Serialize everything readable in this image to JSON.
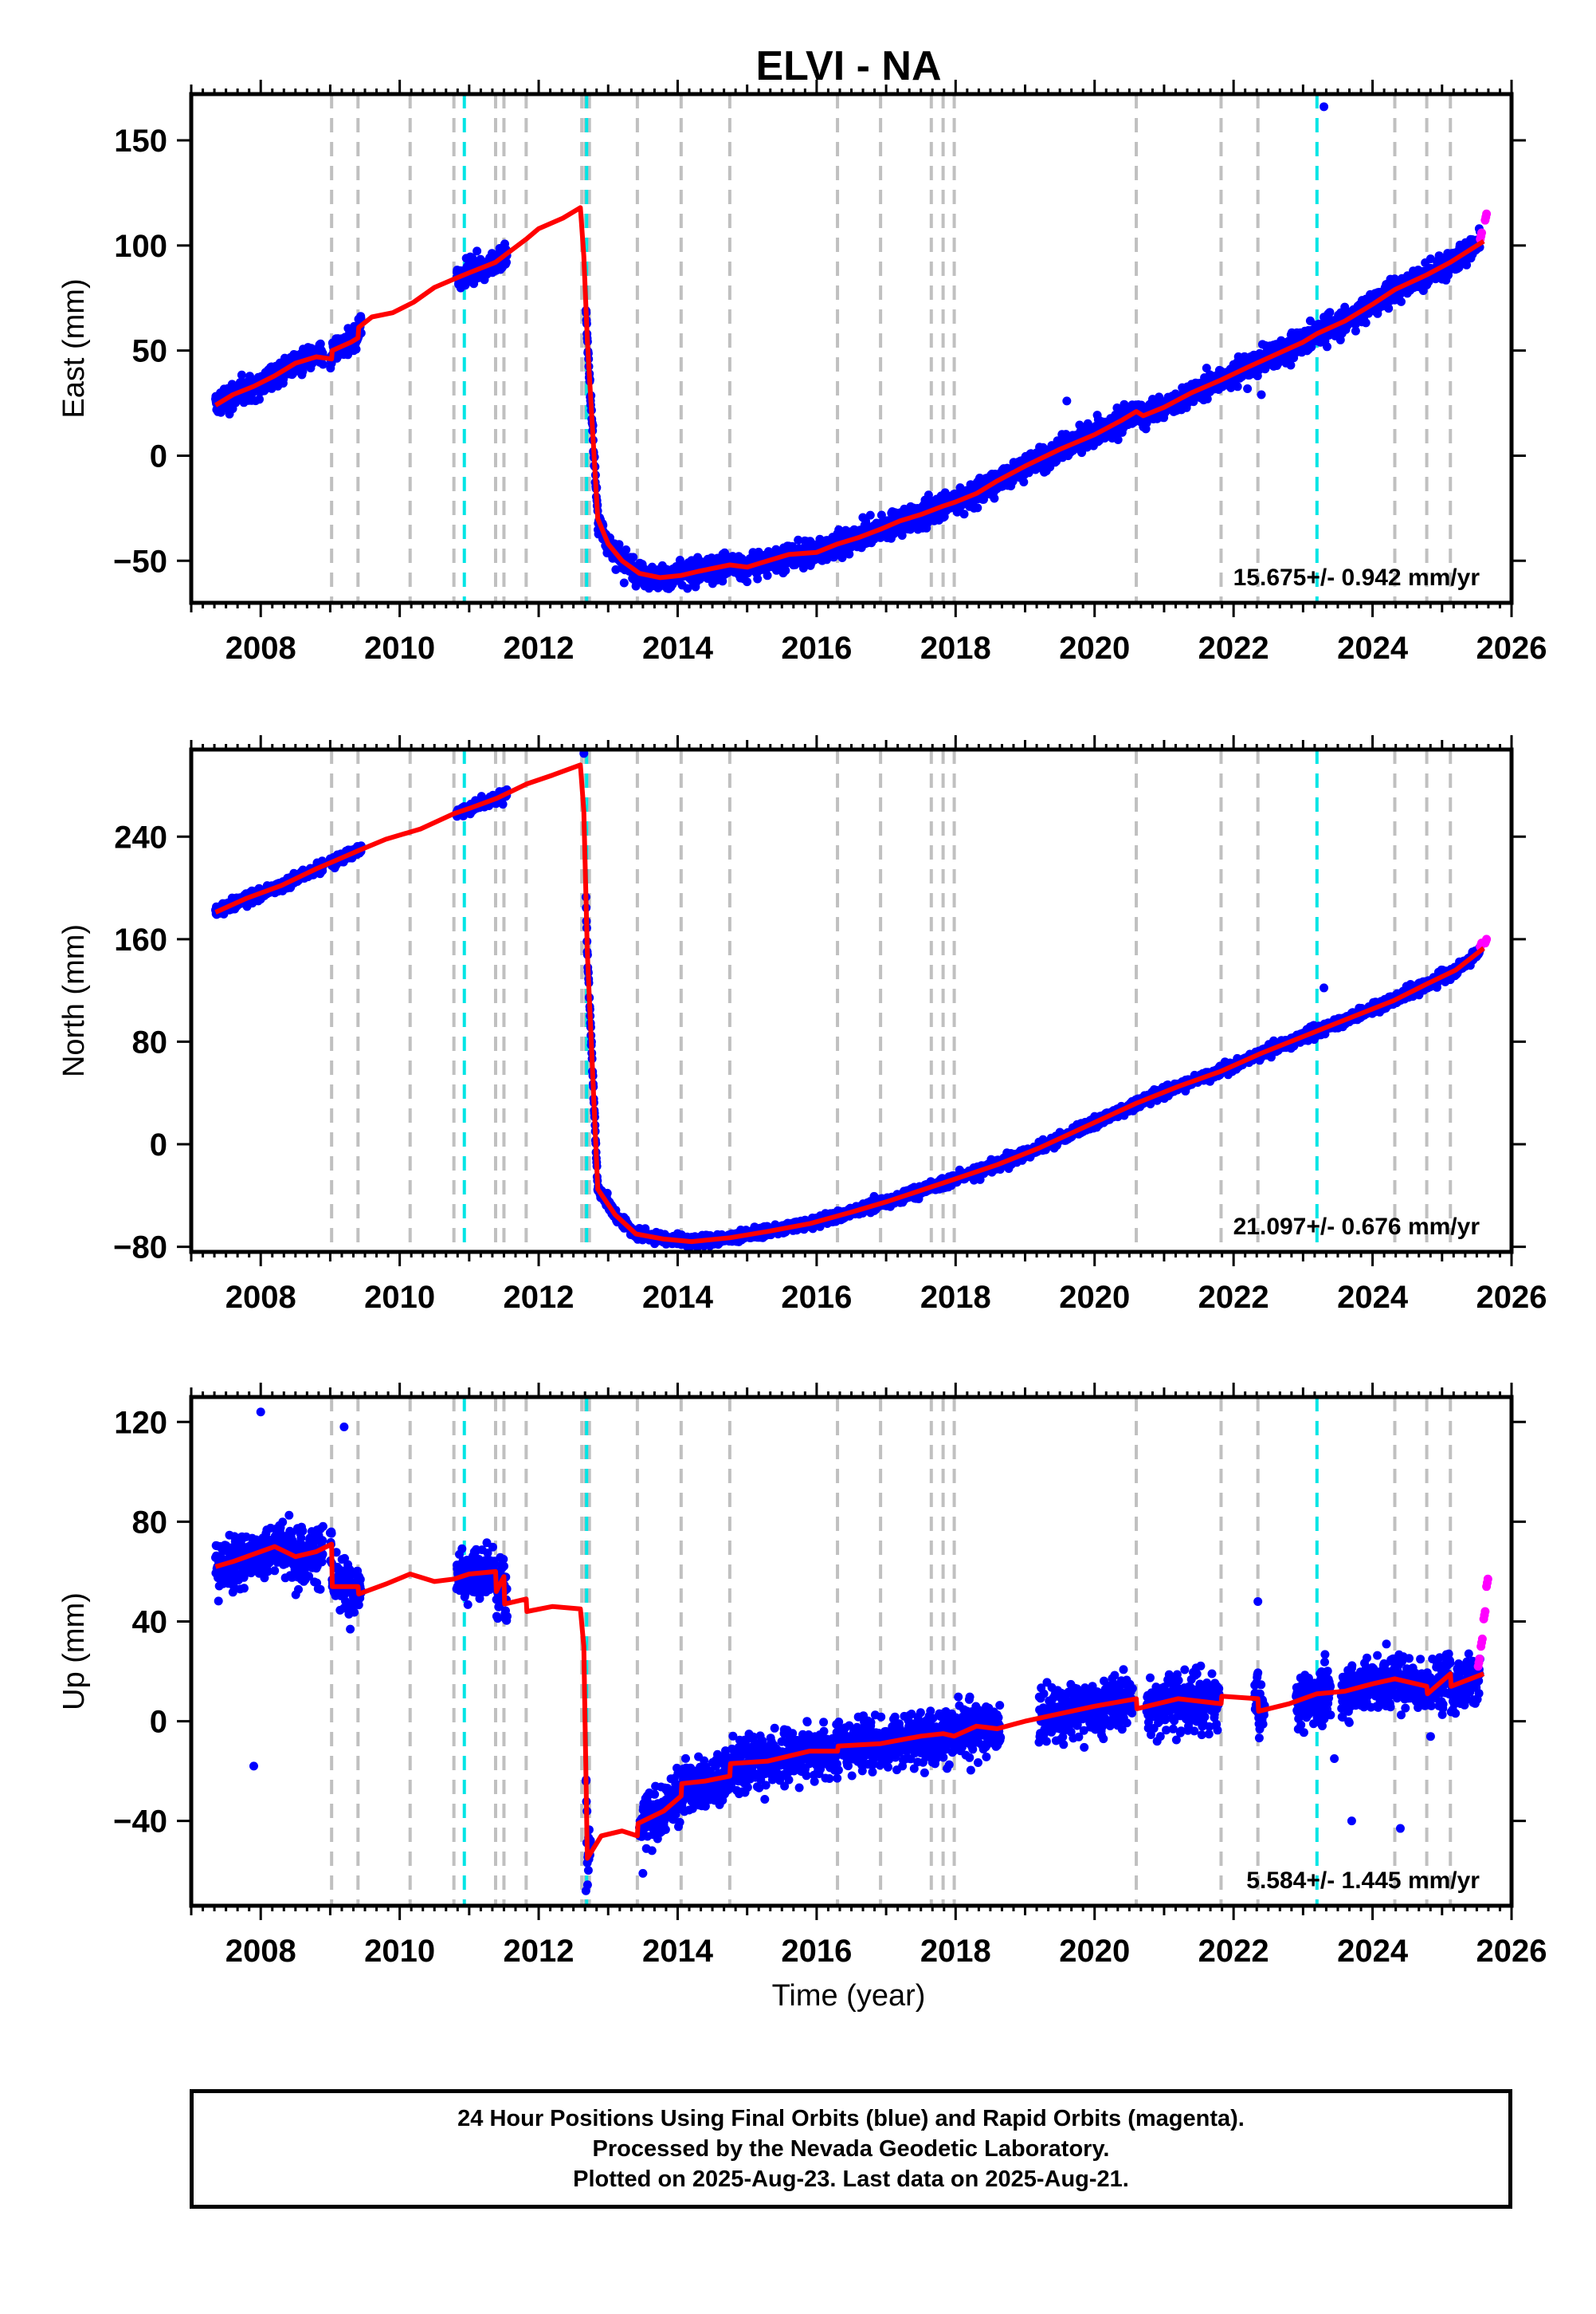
{
  "title": "ELVI - NA",
  "x_axis_title": "Time (year)",
  "caption": [
    "24 Hour Positions Using Final Orbits (blue) and Rapid Orbits (magenta).",
    "Processed by the Nevada Geodetic Laboratory.",
    "Plotted on 2025-Aug-23. Last data on 2025-Aug-21."
  ],
  "colors": {
    "final_orbits": "#0000ff",
    "rapid_orbits": "#ff00ff",
    "model": "#ff0000",
    "equipment_change": "#c0c0c0",
    "earthquake": "#00e5e5"
  },
  "chart_data": [
    {
      "type": "scatter",
      "panel": "east",
      "ylabel": "East (mm)",
      "xlim": [
        2007.0,
        2026.0
      ],
      "ylim": [
        -70,
        172
      ],
      "xticks": [
        2008,
        2010,
        2012,
        2014,
        2016,
        2018,
        2020,
        2022,
        2024,
        2026
      ],
      "yticks": [
        -50,
        0,
        50,
        100,
        150
      ],
      "rate_label": "15.675+/- 0.942 mm/yr",
      "gray_lines": [
        2009.02,
        2009.4,
        2010.15,
        2010.78,
        2011.38,
        2011.5,
        2011.82,
        2012.62,
        2012.67,
        2012.73,
        2013.42,
        2014.05,
        2014.75,
        2016.3,
        2016.92,
        2017.65,
        2017.82,
        2017.98,
        2020.6,
        2021.82,
        2022.35,
        2024.32,
        2024.78,
        2025.12
      ],
      "cyan_lines": [
        2010.93,
        2012.69,
        2023.2
      ],
      "model_series": {
        "name": "model",
        "x": [
          2007.35,
          2007.6,
          2007.9,
          2008.2,
          2008.5,
          2008.8,
          2009.02,
          2009.03,
          2009.3,
          2009.4,
          2009.41,
          2009.6,
          2009.9,
          2010.2,
          2010.5,
          2010.78,
          2011.0,
          2011.38,
          2011.5,
          2011.82,
          2012.0,
          2012.35,
          2012.6,
          2012.65,
          2012.7,
          2012.85,
          2013.0,
          2013.2,
          2013.45,
          2013.75,
          2014.05,
          2014.3,
          2014.75,
          2015.0,
          2015.3,
          2015.6,
          2016.0,
          2016.3,
          2016.6,
          2016.92,
          2017.2,
          2017.5,
          2017.82,
          2018.0,
          2018.3,
          2018.6,
          2019.0,
          2019.5,
          2020.0,
          2020.4,
          2020.6,
          2020.7,
          2021.0,
          2021.4,
          2021.82,
          2022.2,
          2022.6,
          2023.0,
          2023.2,
          2023.6,
          2024.0,
          2024.32,
          2024.78,
          2025.12,
          2025.6
        ],
        "values": [
          24,
          29,
          33,
          38,
          44,
          47,
          46,
          50,
          54,
          56,
          61,
          66,
          68,
          73,
          80,
          84,
          87,
          92,
          95,
          103,
          108,
          113,
          118,
          95,
          55,
          -30,
          -42,
          -50,
          -56,
          -58,
          -57,
          -55,
          -52,
          -53,
          -50,
          -47,
          -46,
          -42,
          -39,
          -35,
          -31,
          -28,
          -24,
          -22,
          -18,
          -12,
          -5,
          3,
          10,
          17,
          21,
          19,
          23,
          30,
          36,
          42,
          48,
          54,
          58,
          64,
          72,
          79,
          86,
          92,
          102
        ]
      },
      "observations_final": {
        "name": "Final Orbits",
        "segments": [
          [
            2007.35,
            2008.9
          ],
          [
            2009.0,
            2009.45
          ],
          [
            2010.82,
            2011.55
          ],
          [
            2012.68,
            2025.55
          ]
        ],
        "scatter_mm": 3.5,
        "outliers": [
          [
            2023.3,
            166
          ],
          [
            2022.4,
            29
          ],
          [
            2019.6,
            26
          ]
        ]
      },
      "observations_rapid": {
        "name": "Rapid Orbits",
        "x": [
          2025.55,
          2025.62
        ],
        "values": [
          103,
          112
        ]
      }
    },
    {
      "type": "scatter",
      "panel": "north",
      "ylabel": "North (mm)",
      "xlim": [
        2007.0,
        2026.0
      ],
      "ylim": [
        -84,
        308
      ],
      "xticks": [
        2008,
        2010,
        2012,
        2014,
        2016,
        2018,
        2020,
        2022,
        2024,
        2026
      ],
      "yticks": [
        -80,
        0,
        80,
        160,
        240
      ],
      "rate_label": "21.097+/- 0.676 mm/yr",
      "gray_lines": [
        2009.02,
        2009.4,
        2010.15,
        2010.78,
        2011.38,
        2011.5,
        2011.82,
        2012.62,
        2012.67,
        2012.73,
        2013.42,
        2014.05,
        2014.75,
        2016.3,
        2016.92,
        2017.65,
        2017.82,
        2017.98,
        2020.6,
        2021.82,
        2022.35,
        2024.32,
        2024.78,
        2025.12
      ],
      "cyan_lines": [
        2010.93,
        2012.69,
        2023.2
      ],
      "model_series": {
        "name": "model",
        "x": [
          2007.35,
          2007.8,
          2008.3,
          2008.8,
          2009.02,
          2009.4,
          2009.8,
          2010.3,
          2010.78,
          2011.0,
          2011.4,
          2011.82,
          2012.2,
          2012.6,
          2012.65,
          2012.7,
          2012.85,
          2013.1,
          2013.4,
          2013.8,
          2014.2,
          2014.75,
          2015.3,
          2015.9,
          2016.5,
          2017.0,
          2017.5,
          2018.0,
          2018.6,
          2019.2,
          2019.8,
          2020.6,
          2021.2,
          2021.82,
          2022.4,
          2023.0,
          2023.6,
          2024.3,
          2024.78,
          2025.2,
          2025.6
        ],
        "values": [
          181,
          192,
          202,
          215,
          220,
          229,
          238,
          246,
          258,
          262,
          270,
          281,
          288,
          296,
          260,
          150,
          -35,
          -55,
          -70,
          -74,
          -76,
          -73,
          -68,
          -62,
          -53,
          -45,
          -36,
          -27,
          -16,
          -3,
          12,
          32,
          45,
          57,
          71,
          84,
          97,
          112,
          125,
          136,
          153
        ]
      },
      "observations_final": {
        "name": "Final Orbits",
        "segments": [
          [
            2007.35,
            2008.9
          ],
          [
            2009.0,
            2009.45
          ],
          [
            2010.82,
            2011.55
          ],
          [
            2012.68,
            2025.55
          ]
        ],
        "scatter_mm": 2.5,
        "outliers": [
          [
            2023.3,
            122
          ],
          [
            2012.65,
            305
          ]
        ]
      },
      "observations_rapid": {
        "name": "Rapid Orbits",
        "x": [
          2025.55,
          2025.62
        ],
        "values": [
          154,
          157
        ]
      }
    },
    {
      "type": "scatter",
      "panel": "up",
      "ylabel": "Up (mm)",
      "xlim": [
        2007.0,
        2026.0
      ],
      "ylim": [
        -74,
        130
      ],
      "xticks": [
        2008,
        2010,
        2012,
        2014,
        2016,
        2018,
        2020,
        2022,
        2024,
        2026
      ],
      "yticks": [
        -40,
        0,
        40,
        80,
        120
      ],
      "rate_label": "5.584+/- 1.445 mm/yr",
      "gray_lines": [
        2009.02,
        2009.4,
        2010.15,
        2010.78,
        2011.38,
        2011.5,
        2011.82,
        2012.62,
        2012.67,
        2012.73,
        2013.42,
        2014.05,
        2014.75,
        2016.3,
        2016.92,
        2017.65,
        2017.82,
        2017.98,
        2020.6,
        2021.82,
        2022.35,
        2024.32,
        2024.78,
        2025.12
      ],
      "cyan_lines": [
        2010.93,
        2012.69,
        2023.2
      ],
      "model_series": {
        "name": "model",
        "x": [
          2007.35,
          2007.6,
          2007.9,
          2008.2,
          2008.5,
          2008.8,
          2009.02,
          2009.03,
          2009.4,
          2009.41,
          2009.8,
          2010.15,
          2010.5,
          2010.78,
          2011.0,
          2011.38,
          2011.39,
          2011.5,
          2011.51,
          2011.82,
          2011.83,
          2012.2,
          2012.6,
          2012.65,
          2012.7,
          2012.9,
          2013.2,
          2013.42,
          2013.43,
          2013.8,
          2014.05,
          2014.06,
          2014.4,
          2014.75,
          2014.76,
          2015.3,
          2015.9,
          2016.3,
          2016.31,
          2016.92,
          2017.5,
          2017.82,
          2017.98,
          2018.3,
          2018.6,
          2019.0,
          2019.5,
          2020.0,
          2020.6,
          2020.61,
          2021.2,
          2021.82,
          2021.83,
          2022.35,
          2022.36,
          2022.8,
          2023.2,
          2023.6,
          2024.0,
          2024.32,
          2024.78,
          2024.79,
          2025.12,
          2025.13,
          2025.6
        ],
        "values": [
          62,
          64,
          67,
          70,
          66,
          68,
          71,
          54,
          54,
          51,
          55,
          59,
          56,
          57,
          59,
          60,
          52,
          58,
          47,
          49,
          44,
          46,
          45,
          30,
          -55,
          -46,
          -44,
          -46,
          -41,
          -36,
          -30,
          -25,
          -24,
          -22,
          -17,
          -16,
          -12,
          -12,
          -10,
          -9,
          -6,
          -5,
          -6,
          -2,
          -3,
          0,
          3,
          6,
          9,
          5,
          9,
          7,
          10,
          9,
          4,
          7,
          11,
          12,
          15,
          17,
          14,
          11,
          19,
          14,
          19
        ]
      },
      "observations_final": {
        "name": "Final Orbits",
        "segments": [
          [
            2007.35,
            2008.9
          ],
          [
            2009.0,
            2009.45
          ],
          [
            2010.82,
            2011.55
          ],
          [
            2012.68,
            2012.75
          ],
          [
            2013.45,
            2018.65
          ],
          [
            2019.2,
            2020.55
          ],
          [
            2020.75,
            2021.8
          ],
          [
            2022.3,
            2022.45
          ],
          [
            2022.9,
            2023.4
          ],
          [
            2023.55,
            2025.55
          ]
        ],
        "scatter_mm": 6.5,
        "outliers": [
          [
            2008.0,
            124
          ],
          [
            2009.2,
            118
          ],
          [
            2007.9,
            -18
          ],
          [
            2022.35,
            48
          ],
          [
            2013.5,
            -61
          ],
          [
            2012.68,
            -68
          ],
          [
            2023.45,
            -15
          ],
          [
            2023.7,
            -40
          ],
          [
            2024.4,
            -43
          ]
        ]
      },
      "observations_rapid": {
        "name": "Rapid Orbits",
        "x": [
          2025.52,
          2025.56,
          2025.6,
          2025.64
        ],
        "values": [
          22,
          30,
          41,
          54
        ]
      }
    }
  ]
}
